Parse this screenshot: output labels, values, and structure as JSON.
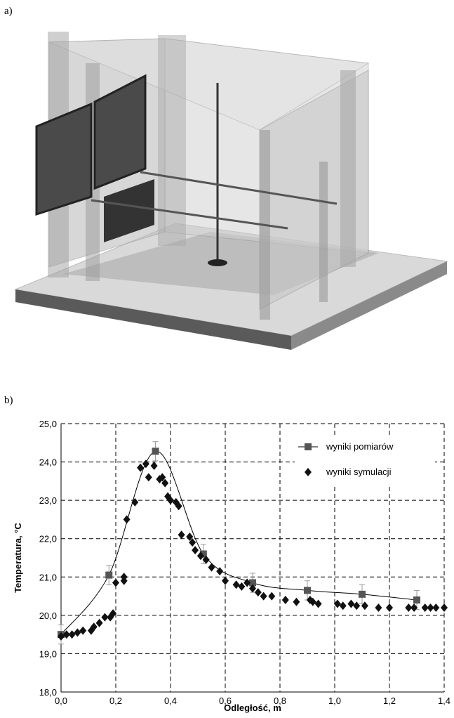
{
  "panel_labels": [
    "a)",
    "b)"
  ],
  "chart_data": {
    "type": "scatter",
    "xlabel": "Odległość, m",
    "ylabel": "Temperatura, °C",
    "xlim": [
      0,
      1.4
    ],
    "ylim": [
      18,
      25
    ],
    "xticks": [
      {
        "value": 0,
        "label": "0,0"
      },
      {
        "value": 0.2,
        "label": "0,2"
      },
      {
        "value": 0.4,
        "label": "0,4"
      },
      {
        "value": 0.6,
        "label": "0,6"
      },
      {
        "value": 0.8,
        "label": "0,8"
      },
      {
        "value": 1.0,
        "label": "1,0"
      },
      {
        "value": 1.2,
        "label": "1,2"
      },
      {
        "value": 1.4,
        "label": "1,4"
      }
    ],
    "yticks": [
      {
        "value": 18,
        "label": "18,0"
      },
      {
        "value": 19,
        "label": "19,0"
      },
      {
        "value": 20,
        "label": "20,0"
      },
      {
        "value": 21,
        "label": "21,0"
      },
      {
        "value": 22,
        "label": "22,0"
      },
      {
        "value": 23,
        "label": "23,0"
      },
      {
        "value": 24,
        "label": "24,0"
      },
      {
        "value": 25,
        "label": "25,0"
      }
    ],
    "grid": true,
    "legend": "upper right",
    "series": [
      {
        "name": "wyniki pomiarów",
        "color": "#555555",
        "marker": "square",
        "line": true,
        "x": [
          0.0,
          0.175,
          0.345,
          0.52,
          0.7,
          0.9,
          1.1,
          1.3
        ],
        "values": [
          19.5,
          21.05,
          24.28,
          21.6,
          20.85,
          20.65,
          20.55,
          20.4
        ],
        "errors": [
          0.25,
          0.25,
          0.25,
          0.25,
          0.25,
          0.25,
          0.25,
          0.25
        ]
      },
      {
        "name": "wyniki symulacji",
        "color": "#111111",
        "marker": "diamond",
        "line": false,
        "x": [
          0.0,
          0.02,
          0.04,
          0.06,
          0.08,
          0.11,
          0.12,
          0.14,
          0.16,
          0.18,
          0.19,
          0.2,
          0.23,
          0.23,
          0.24,
          0.27,
          0.29,
          0.31,
          0.32,
          0.34,
          0.36,
          0.37,
          0.38,
          0.39,
          0.4,
          0.42,
          0.43,
          0.44,
          0.47,
          0.48,
          0.49,
          0.51,
          0.53,
          0.55,
          0.58,
          0.6,
          0.64,
          0.66,
          0.68,
          0.7,
          0.72,
          0.74,
          0.77,
          0.82,
          0.86,
          0.91,
          0.92,
          0.94,
          1.01,
          1.03,
          1.06,
          1.08,
          1.11,
          1.16,
          1.2,
          1.27,
          1.29,
          1.33,
          1.35,
          1.37,
          1.4
        ],
        "values": [
          19.45,
          19.5,
          19.5,
          19.55,
          19.6,
          19.6,
          19.7,
          19.8,
          19.95,
          19.95,
          20.05,
          20.85,
          20.9,
          21.0,
          22.5,
          22.95,
          23.85,
          23.95,
          23.6,
          23.9,
          23.55,
          23.6,
          23.45,
          23.1,
          23.0,
          22.95,
          22.85,
          22.1,
          22.05,
          21.9,
          21.7,
          21.55,
          21.45,
          21.25,
          21.15,
          20.9,
          20.8,
          20.75,
          20.85,
          20.7,
          20.6,
          20.5,
          20.5,
          20.4,
          20.35,
          20.4,
          20.35,
          20.3,
          20.3,
          20.25,
          20.3,
          20.25,
          20.25,
          20.2,
          20.2,
          20.2,
          20.2,
          20.2,
          20.2,
          20.2,
          20.2
        ]
      }
    ]
  }
}
